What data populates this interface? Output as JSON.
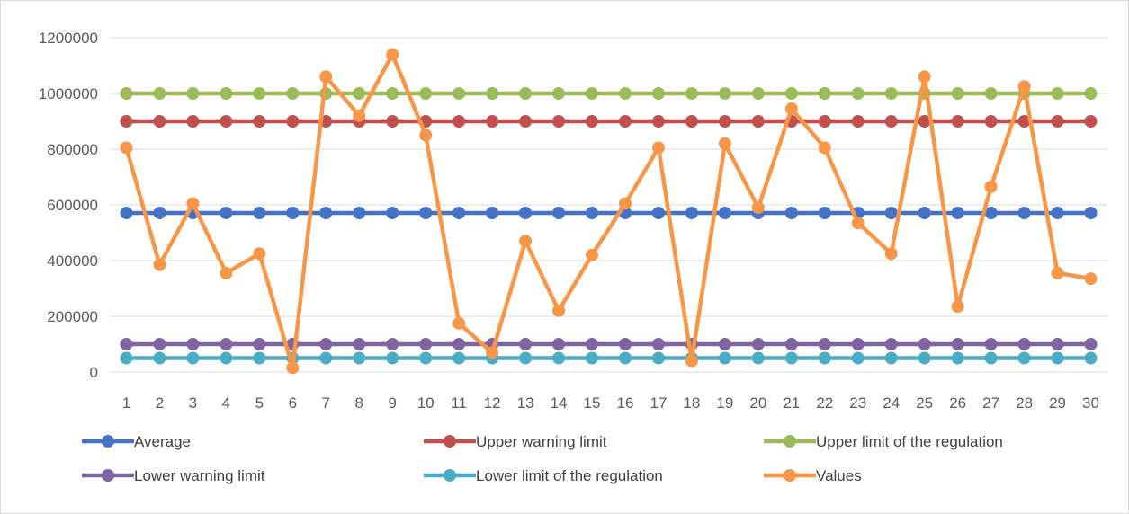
{
  "chart_data": {
    "type": "line",
    "title": "",
    "xlabel": "",
    "ylabel": "",
    "ylim": [
      0,
      1200000
    ],
    "ytick_step": 200000,
    "yticks": [
      "0",
      "200000",
      "400000",
      "600000",
      "800000",
      "1000000",
      "1200000"
    ],
    "x": [
      1,
      2,
      3,
      4,
      5,
      6,
      7,
      8,
      9,
      10,
      11,
      12,
      13,
      14,
      15,
      16,
      17,
      18,
      19,
      20,
      21,
      22,
      23,
      24,
      25,
      26,
      27,
      28,
      29,
      30
    ],
    "grid": "horizontal",
    "legend_position": "bottom",
    "series": [
      {
        "name": "Average",
        "color": "#4472c4",
        "values": [
          571000,
          571000,
          571000,
          571000,
          571000,
          571000,
          571000,
          571000,
          571000,
          571000,
          571000,
          571000,
          571000,
          571000,
          571000,
          571000,
          571000,
          571000,
          571000,
          571000,
          571000,
          571000,
          571000,
          571000,
          571000,
          571000,
          571000,
          571000,
          571000,
          571000
        ]
      },
      {
        "name": "Upper warning limit",
        "color": "#c0504d",
        "values": [
          900000,
          900000,
          900000,
          900000,
          900000,
          900000,
          900000,
          900000,
          900000,
          900000,
          900000,
          900000,
          900000,
          900000,
          900000,
          900000,
          900000,
          900000,
          900000,
          900000,
          900000,
          900000,
          900000,
          900000,
          900000,
          900000,
          900000,
          900000,
          900000,
          900000
        ]
      },
      {
        "name": "Upper limit of the regulation",
        "color": "#9bbb59",
        "values": [
          1000000,
          1000000,
          1000000,
          1000000,
          1000000,
          1000000,
          1000000,
          1000000,
          1000000,
          1000000,
          1000000,
          1000000,
          1000000,
          1000000,
          1000000,
          1000000,
          1000000,
          1000000,
          1000000,
          1000000,
          1000000,
          1000000,
          1000000,
          1000000,
          1000000,
          1000000,
          1000000,
          1000000,
          1000000,
          1000000
        ]
      },
      {
        "name": "Lower warning limit",
        "color": "#8064a2",
        "values": [
          100000,
          100000,
          100000,
          100000,
          100000,
          100000,
          100000,
          100000,
          100000,
          100000,
          100000,
          100000,
          100000,
          100000,
          100000,
          100000,
          100000,
          100000,
          100000,
          100000,
          100000,
          100000,
          100000,
          100000,
          100000,
          100000,
          100000,
          100000,
          100000,
          100000
        ]
      },
      {
        "name": "Lower limit of the regulation",
        "color": "#4bacc6",
        "values": [
          50000,
          50000,
          50000,
          50000,
          50000,
          50000,
          50000,
          50000,
          50000,
          50000,
          50000,
          50000,
          50000,
          50000,
          50000,
          50000,
          50000,
          50000,
          50000,
          50000,
          50000,
          50000,
          50000,
          50000,
          50000,
          50000,
          50000,
          50000,
          50000,
          50000
        ]
      },
      {
        "name": "Values",
        "color": "#f79646",
        "values": [
          805000,
          385000,
          605000,
          355000,
          425000,
          15000,
          1060000,
          920000,
          1140000,
          850000,
          175000,
          70000,
          470000,
          220000,
          420000,
          605000,
          805000,
          40000,
          820000,
          590000,
          945000,
          805000,
          535000,
          425000,
          1060000,
          235000,
          665000,
          1025000,
          355000,
          335000
        ]
      }
    ]
  }
}
